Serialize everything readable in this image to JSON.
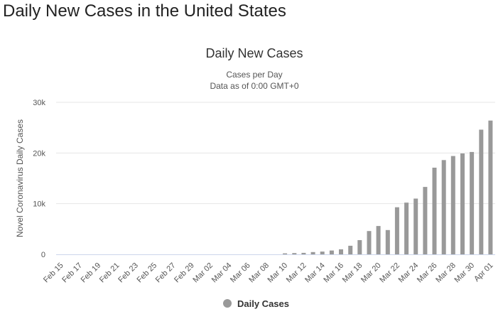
{
  "page": {
    "title": "Daily New Cases in the United States"
  },
  "colors": {
    "bar": "#999999",
    "grid": "#e6e6e6",
    "axis": "#ccd6eb"
  },
  "chart_data": {
    "type": "bar",
    "title": "Daily New Cases",
    "subtitle": [
      "Cases per Day",
      "Data as of 0:00 GMT+0"
    ],
    "xlabel": "",
    "ylabel": "Novel Coronavirus Daily Cases",
    "ylim": [
      0,
      30000
    ],
    "yticks": [
      {
        "value": 0,
        "label": "0"
      },
      {
        "value": 10000,
        "label": "10k"
      },
      {
        "value": 20000,
        "label": "20k"
      },
      {
        "value": 30000,
        "label": "30k"
      }
    ],
    "grid": true,
    "legend_position": "bottom-center",
    "categories": [
      "Feb 15",
      "Feb 16",
      "Feb 17",
      "Feb 18",
      "Feb 19",
      "Feb 20",
      "Feb 21",
      "Feb 22",
      "Feb 23",
      "Feb 24",
      "Feb 25",
      "Feb 26",
      "Feb 27",
      "Feb 28",
      "Feb 29",
      "Mar 01",
      "Mar 02",
      "Mar 03",
      "Mar 04",
      "Mar 05",
      "Mar 06",
      "Mar 07",
      "Mar 08",
      "Mar 09",
      "Mar 10",
      "Mar 11",
      "Mar 12",
      "Mar 13",
      "Mar 14",
      "Mar 15",
      "Mar 16",
      "Mar 17",
      "Mar 18",
      "Mar 19",
      "Mar 20",
      "Mar 21",
      "Mar 22",
      "Mar 23",
      "Mar 24",
      "Mar 25",
      "Mar 26",
      "Mar 27",
      "Mar 28",
      "Mar 29",
      "Mar 30",
      "Mar 31",
      "Apr 01"
    ],
    "tick_labels": [
      "Feb 15",
      "Feb 17",
      "Feb 19",
      "Feb 21",
      "Feb 23",
      "Feb 25",
      "Feb 27",
      "Feb 29",
      "Mar 02",
      "Mar 04",
      "Mar 06",
      "Mar 08",
      "Mar 10",
      "Mar 12",
      "Mar 14",
      "Mar 16",
      "Mar 18",
      "Mar 20",
      "Mar 22",
      "Mar 24",
      "Mar 26",
      "Mar 28",
      "Mar 30",
      "Apr 01"
    ],
    "series": [
      {
        "name": "Daily Cases",
        "values": [
          0,
          0,
          0,
          0,
          0,
          0,
          0,
          0,
          0,
          0,
          0,
          0,
          0,
          0,
          0,
          0,
          0,
          0,
          0,
          0,
          0,
          0,
          0,
          0,
          200,
          250,
          300,
          450,
          550,
          750,
          1000,
          1700,
          2800,
          4600,
          5600,
          4800,
          9300,
          10200,
          11000,
          13300,
          17100,
          18600,
          19400,
          19900,
          20200,
          24600,
          26400
        ]
      }
    ]
  }
}
